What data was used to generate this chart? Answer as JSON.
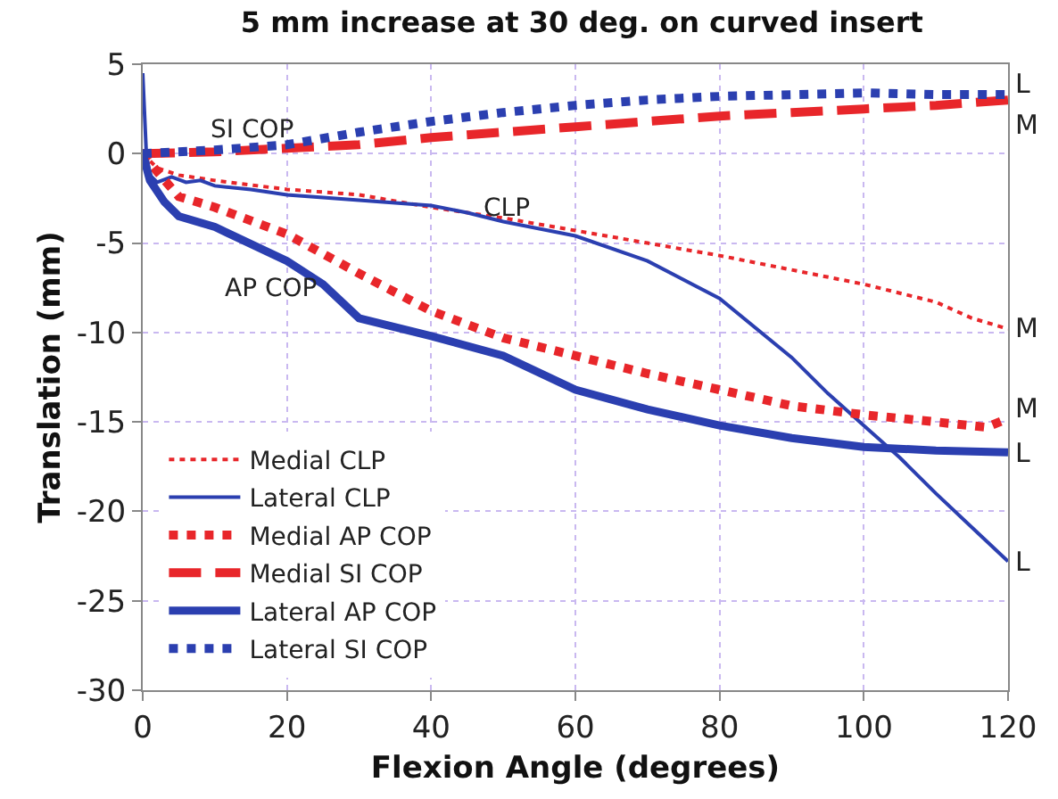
{
  "chart_data": {
    "type": "line",
    "title": "5 mm increase at 30 deg. on curved insert",
    "xlabel": "Flexion Angle (degrees)",
    "ylabel": "Translation (mm)",
    "xlim": [
      0,
      120
    ],
    "xticks": [
      0,
      20,
      40,
      60,
      80,
      100,
      120
    ],
    "ylim": [
      -30,
      5
    ],
    "yticks": [
      -30,
      -25,
      -20,
      -15,
      -10,
      -5,
      0,
      5
    ],
    "grid": true,
    "legend": "bottom left",
    "marker": "none",
    "series": [
      {
        "name": "Medial CLP",
        "color": "#e8262a",
        "line_style": "dotted",
        "x": [
          0,
          2,
          5,
          10,
          20,
          30,
          40,
          50,
          60,
          70,
          80,
          90,
          100,
          110,
          115,
          120
        ],
        "values": [
          0,
          -0.8,
          -1.2,
          -1.5,
          -2.0,
          -2.3,
          -3.0,
          -3.6,
          -4.3,
          -5.0,
          -5.7,
          -6.5,
          -7.3,
          -8.3,
          -9.2,
          -9.8
        ]
      },
      {
        "name": "Lateral CLP",
        "color": "#2b3fb0",
        "line_style": "solid",
        "x": [
          0,
          0.5,
          1,
          2,
          4,
          6,
          8,
          10,
          15,
          20,
          30,
          40,
          45,
          50,
          60,
          70,
          80,
          90,
          95,
          100,
          105,
          110,
          115,
          120
        ],
        "values": [
          4.5,
          0,
          -1.2,
          -1.6,
          -1.3,
          -1.6,
          -1.5,
          -1.8,
          -2.0,
          -2.3,
          -2.6,
          -2.9,
          -3.3,
          -3.8,
          -4.6,
          -6.0,
          -8.1,
          -11.4,
          -13.4,
          -15.2,
          -17.0,
          -19.0,
          -20.9,
          -22.8
        ]
      },
      {
        "name": "Medial AP COP",
        "color": "#e8262a",
        "line_style": "dotted",
        "x": [
          0,
          2,
          5,
          10,
          20,
          30,
          40,
          50,
          60,
          70,
          80,
          90,
          100,
          110,
          117,
          120
        ],
        "values": [
          0,
          -1.0,
          -2.4,
          -3.0,
          -4.5,
          -6.7,
          -8.8,
          -10.3,
          -11.3,
          -12.3,
          -13.2,
          -14.1,
          -14.6,
          -15.0,
          -15.3,
          -14.8
        ]
      },
      {
        "name": "Medial SI COP",
        "color": "#e8262a",
        "line_style": "dashed",
        "x": [
          0,
          10,
          20,
          30,
          40,
          50,
          60,
          70,
          80,
          90,
          100,
          110,
          120
        ],
        "values": [
          0,
          0.1,
          0.3,
          0.5,
          0.9,
          1.2,
          1.5,
          1.8,
          2.1,
          2.3,
          2.5,
          2.7,
          3.0
        ]
      },
      {
        "name": "Lateral AP COP",
        "color": "#2b3fb0",
        "line_style": "solid",
        "x": [
          0,
          1,
          3,
          5,
          10,
          20,
          25,
          30,
          40,
          50,
          60,
          70,
          80,
          90,
          100,
          110,
          120
        ],
        "values": [
          0,
          -1.5,
          -2.7,
          -3.5,
          -4.1,
          -6.0,
          -7.3,
          -9.2,
          -10.2,
          -11.3,
          -13.2,
          -14.3,
          -15.2,
          -15.9,
          -16.4,
          -16.6,
          -16.7
        ]
      },
      {
        "name": "Lateral SI COP",
        "color": "#2b3fb0",
        "line_style": "dotted",
        "x": [
          0,
          10,
          20,
          30,
          40,
          50,
          60,
          70,
          80,
          90,
          100,
          110,
          120
        ],
        "values": [
          0,
          0.2,
          0.5,
          1.2,
          1.8,
          2.3,
          2.7,
          3.0,
          3.2,
          3.3,
          3.4,
          3.3,
          3.3
        ]
      }
    ],
    "annotations": [
      "SI COP",
      "CLP",
      "AP COP",
      "L",
      "M",
      "M",
      "M",
      "L",
      "L"
    ]
  }
}
